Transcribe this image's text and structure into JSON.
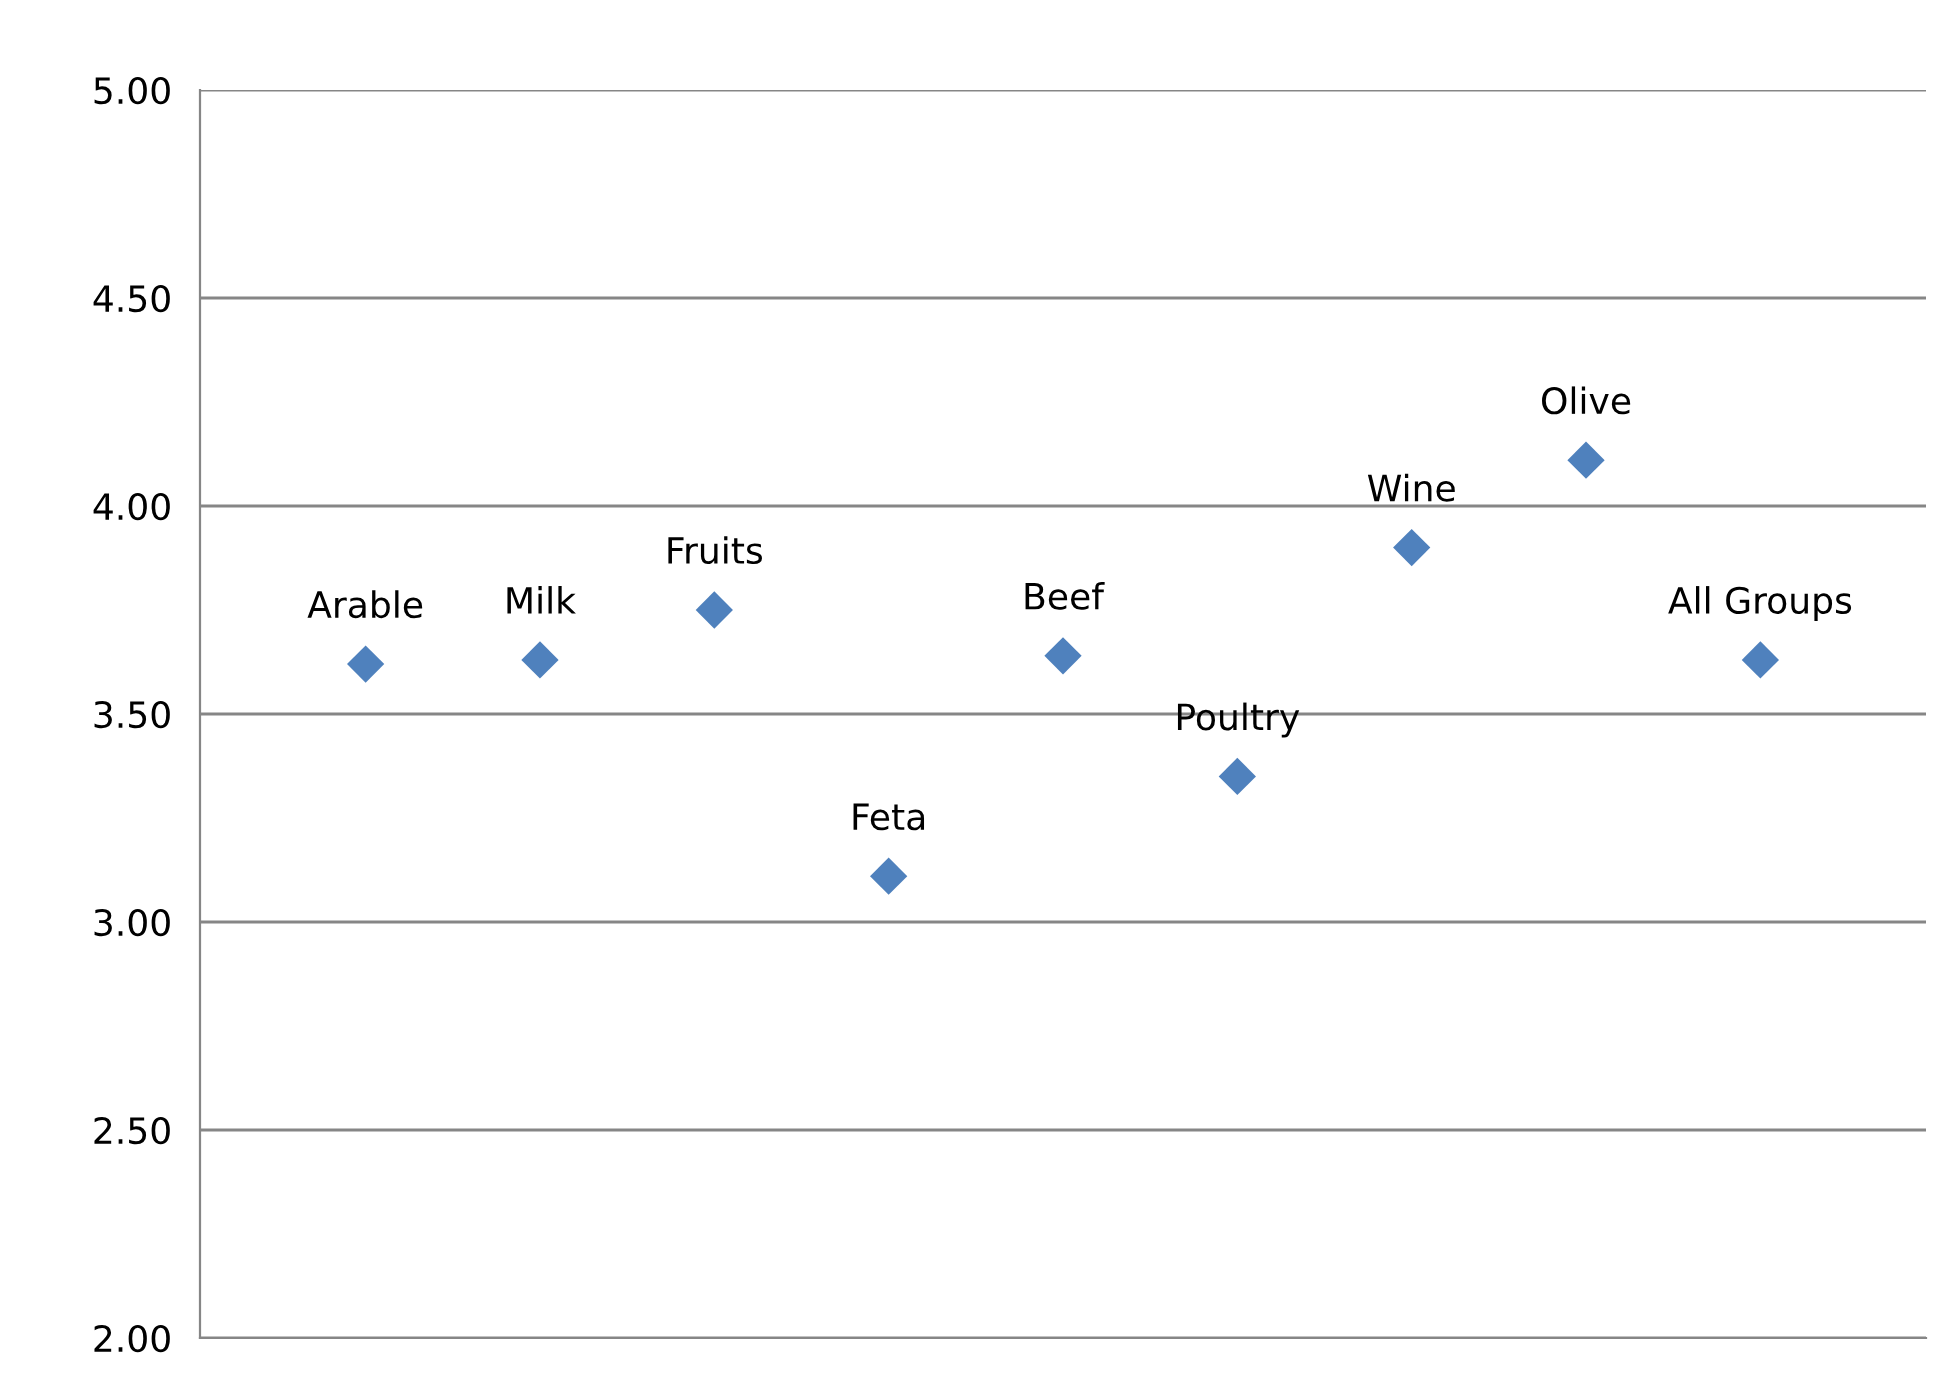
{
  "chart_data": {
    "type": "scatter",
    "categories": [
      "Arable",
      "Milk",
      "Fruits",
      "Feta",
      "Beef",
      "Poultry",
      "Wine",
      "Olive",
      "All Groups"
    ],
    "series": [
      {
        "color": "#4f81bd",
        "values": [
          3.62,
          3.63,
          3.75,
          3.11,
          3.64,
          3.35,
          3.9,
          4.11,
          3.63
        ]
      }
    ],
    "ylim": [
      2,
      5
    ],
    "yticks": [
      {
        "value": 2,
        "label": "2.00"
      },
      {
        "value": 2.5,
        "label": "2.50"
      },
      {
        "value": 3,
        "label": "3.00"
      },
      {
        "value": 3.5,
        "label": "3.50"
      },
      {
        "value": 4,
        "label": "4.00"
      },
      {
        "value": 4.5,
        "label": "4.50"
      },
      {
        "value": 5,
        "label": "5.00"
      }
    ],
    "grid": "y",
    "marker": "diamond",
    "tick_labels": "y",
    "legend": false
  }
}
